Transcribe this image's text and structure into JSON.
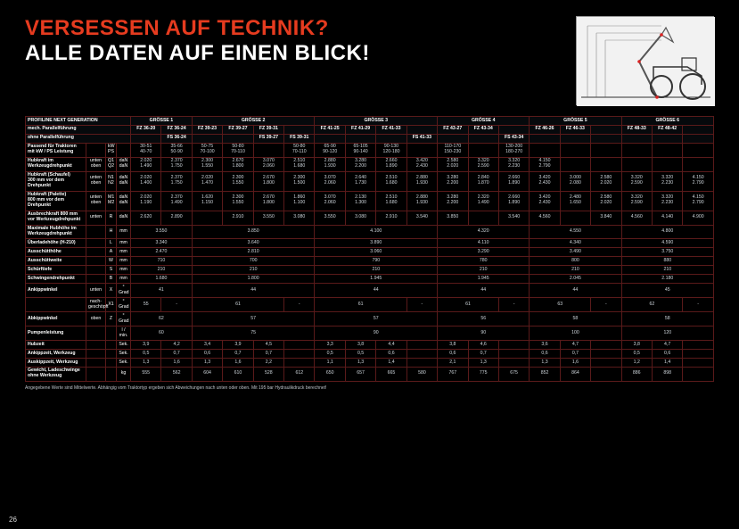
{
  "title_red": "VERSESSEN AUF TECHNIK?",
  "title_white": "ALLE DATEN AUF EINEN BLICK!",
  "page_number": "26",
  "footnote": "Angegebene Werte sind Mittelwerte. Abhängig vom Traktortyp ergeben sich Abweichungen nach unten oder oben.\nMit 195 bar Hydraulikdruck berechnet!",
  "groups": [
    "GRÖSSE 1",
    "GRÖSSE 2",
    "GRÖSSE 3",
    "GRÖSSE 4",
    "GRÖSSE 5",
    "GRÖSSE 6"
  ],
  "mech_row_label": "mech. Parallelführung",
  "mech_cols": [
    "FZ 36-20",
    "FZ 36-24",
    "FZ 39-23",
    "FZ 39-27",
    "FZ 39-31",
    "FZ 41-25",
    "FZ 41-29",
    "FZ 41-33",
    "FZ 43-27",
    "FZ 43-34",
    "FZ 46-26",
    "FZ 46-33",
    "FZ 48-33",
    "FZ 48-42"
  ],
  "ohne_row_label": "ohne Parallelführung",
  "ohne_cols": [
    "FS 36-24",
    "FS 39-27",
    "FS 39-31",
    "FS 41-33",
    "FS 43-34"
  ],
  "rows": [
    {
      "label": "PROFILINE NEXT GENERATION",
      "type": "heading"
    },
    {
      "label": "Passend für Traktoren\nmit kW / PS Leistung",
      "sub": "",
      "code": "kW\nPS",
      "unit": "",
      "vals": [
        "30-51\n40-70",
        "35-66\n50-90",
        "50-75\n70-100",
        "50-80\n70-110",
        "",
        "50-80\n70-110",
        "65-90\n90-120",
        "65-105\n90-140",
        "90-130\n120-180",
        "",
        "110-170\n150-230",
        "",
        "130-200\n180-270",
        ""
      ]
    },
    {
      "label": "Hubkraft im\nWerkzeugdrehpunkt",
      "sub": "unten\noben",
      "code": "Q1\nQ2",
      "unit": "daN\ndaN",
      "vals": [
        "2.020\n1.490",
        "2.370\n1.750",
        "2.300\n1.550",
        "2.670\n1.800",
        "3.070\n2.060",
        "2.510\n1.680",
        "2.880\n1.930",
        "3.280\n2.200",
        "2.660\n1.890",
        "3.420\n2.430",
        "2.580\n2.020",
        "3.320\n2.590",
        "3.320\n2.230",
        "4.150\n2.790"
      ]
    },
    {
      "label": "Hubkraft (Schaufel)\n300 mm vor dem Drehpunkt",
      "sub": "unten\noben",
      "code": "N1\nN2",
      "unit": "daN\ndaN",
      "vals": [
        "2.020\n1.400",
        "2.370\n1.750",
        "2.020\n1.470",
        "2.300\n1.550",
        "2.670\n1.800",
        "2.300\n1.500",
        "3.070\n2.060",
        "2.640\n1.730",
        "2.510\n1.680",
        "2.880\n1.930",
        "3.280\n2.200",
        "2.840\n1.870",
        "2.660\n1.890",
        "3.420\n2.430",
        "3.000\n2.080",
        "2.580\n2.020",
        "3.320\n2.590",
        "3.320\n2.230",
        "4.150\n2.790"
      ],
      "wide": true
    },
    {
      "label": "Hubkraft (Palette)\n800 mm vor dem Drehpunkt",
      "sub": "unten\noben",
      "code": "M1\nM2",
      "unit": "daN\ndaN",
      "vals": [
        "2.020\n1.190",
        "2.370\n1.490",
        "1.620\n1.150",
        "2.300\n1.550",
        "2.670\n1.800",
        "1.860\n1.100",
        "3.070\n2.060",
        "2.130\n1.300",
        "2.510\n1.680",
        "2.880\n1.930",
        "3.280\n2.200",
        "2.320\n1.490",
        "2.660\n1.890",
        "3.420\n2.430",
        "2.480\n1.650",
        "2.580\n2.020",
        "3.320\n2.590",
        "3.320\n2.230",
        "4.150\n2.790"
      ],
      "wide": true
    },
    {
      "label": "Ausbrechkraft 800 mm\nvor Werkzeugdrehpunkt",
      "sub": "unten",
      "code": "R",
      "unit": "daN",
      "vals": [
        "2.620",
        "2.890",
        "",
        "2.910",
        "3.550",
        "3.080",
        "3.550",
        "3.080",
        "2.910",
        "3.540",
        "3.850",
        "",
        "3.540",
        "4.560",
        "",
        "3.840",
        "4.560",
        "4.140",
        "4.900"
      ],
      "wide": true
    },
    {
      "label": "Maximale Hubhöhe im\nWerkzeugdrehpunkt",
      "sub": "",
      "code": "H",
      "unit": "mm",
      "group_vals": [
        "3.550",
        "3.850",
        "4.100",
        "4.320",
        "4.550",
        "4.800"
      ]
    },
    {
      "label": "Überladehöhe (H-210)",
      "sub": "",
      "code": "L",
      "unit": "mm",
      "group_vals": [
        "3.340",
        "3.640",
        "3.890",
        "4.110",
        "4.340",
        "4.590"
      ]
    },
    {
      "label": "Ausschütthöhe",
      "sub": "",
      "code": "A",
      "unit": "mm",
      "group_vals": [
        "2.470",
        "2.810",
        "3.060",
        "3.290",
        "3.490",
        "3.750"
      ]
    },
    {
      "label": "Ausschüttweite",
      "sub": "",
      "code": "W",
      "unit": "mm",
      "group_vals": [
        "710",
        "700",
        "790",
        "780",
        "800",
        "880"
      ]
    },
    {
      "label": "Schürftiefe",
      "sub": "",
      "code": "S",
      "unit": "mm",
      "group_vals": [
        "210",
        "210",
        "210",
        "210",
        "210",
        "210"
      ]
    },
    {
      "label": "Schwingendrehpunkt",
      "sub": "",
      "code": "B",
      "unit": "mm",
      "group_vals": [
        "1.680",
        "1.800",
        "1.945",
        "1.945",
        "2.045",
        "2.180"
      ]
    },
    {
      "label": "Ankippwinkel",
      "sub": "unten",
      "code": "X",
      "unit": "° Grad",
      "group_vals": [
        "41",
        "44",
        "44",
        "44",
        "44",
        "45"
      ]
    },
    {
      "label": "",
      "sub": "nach-\ngeschöpft",
      "code": "X1",
      "unit": "° Grad",
      "group_valsL": [
        "55",
        "61",
        "61",
        "61",
        "63",
        "62"
      ]
    },
    {
      "label": "Abkippwinkel",
      "sub": "oben",
      "code": "Z",
      "unit": "° Grad",
      "group_vals": [
        "62",
        "57",
        "57",
        "56",
        "58",
        "58"
      ]
    },
    {
      "label": "Pumpenleistung",
      "sub": "",
      "code": "",
      "unit": "l / min.",
      "group_vals": [
        "60",
        "75",
        "90",
        "90",
        "100",
        "120"
      ]
    },
    {
      "label": "Hubzeit",
      "sub": "",
      "code": "",
      "unit": "Sek.",
      "pair_vals": [
        [
          "3,9",
          "4,2"
        ],
        [
          "3,4",
          "3,9",
          "4,5"
        ],
        [
          "3,3",
          "3,8",
          "4,4"
        ],
        [
          "3,8",
          "4,6"
        ],
        [
          "3,6",
          "4,7"
        ],
        [
          "3,8",
          "4,7"
        ]
      ]
    },
    {
      "label": "Ankippzeit, Werkzeug",
      "sub": "",
      "code": "",
      "unit": "Sek.",
      "pair_vals": [
        [
          "0,5",
          "0,7"
        ],
        [
          "0,6",
          "0,7",
          "0,7"
        ],
        [
          "0,5",
          "0,5",
          "0,6"
        ],
        [
          "0,6",
          "0,7"
        ],
        [
          "0,6",
          "0,7"
        ],
        [
          "0,5",
          "0,6"
        ]
      ]
    },
    {
      "label": "Auskippzeit, Werkzeug",
      "sub": "",
      "code": "",
      "unit": "Sek.",
      "pair_vals": [
        [
          "1,3",
          "1,6"
        ],
        [
          "1,3",
          "1,6",
          "2,2"
        ],
        [
          "1,1",
          "1,3",
          "1,4"
        ],
        [
          "2,1",
          "1,3"
        ],
        [
          "1,3",
          "1,6"
        ],
        [
          "1,2",
          "1,4"
        ]
      ]
    },
    {
      "label": "Gewicht, Ladeschwinge\nohne Werkzeug",
      "sub": "",
      "code": "",
      "unit": "kg",
      "pair_vals": [
        [
          "555",
          "562",
          "480"
        ],
        [
          "604",
          "610",
          "528",
          "612",
          "530"
        ],
        [
          "650",
          "657",
          "665",
          "580"
        ],
        [
          "767",
          "775",
          "675"
        ],
        [
          "852",
          "864"
        ],
        [
          "886",
          "898"
        ]
      ]
    }
  ]
}
